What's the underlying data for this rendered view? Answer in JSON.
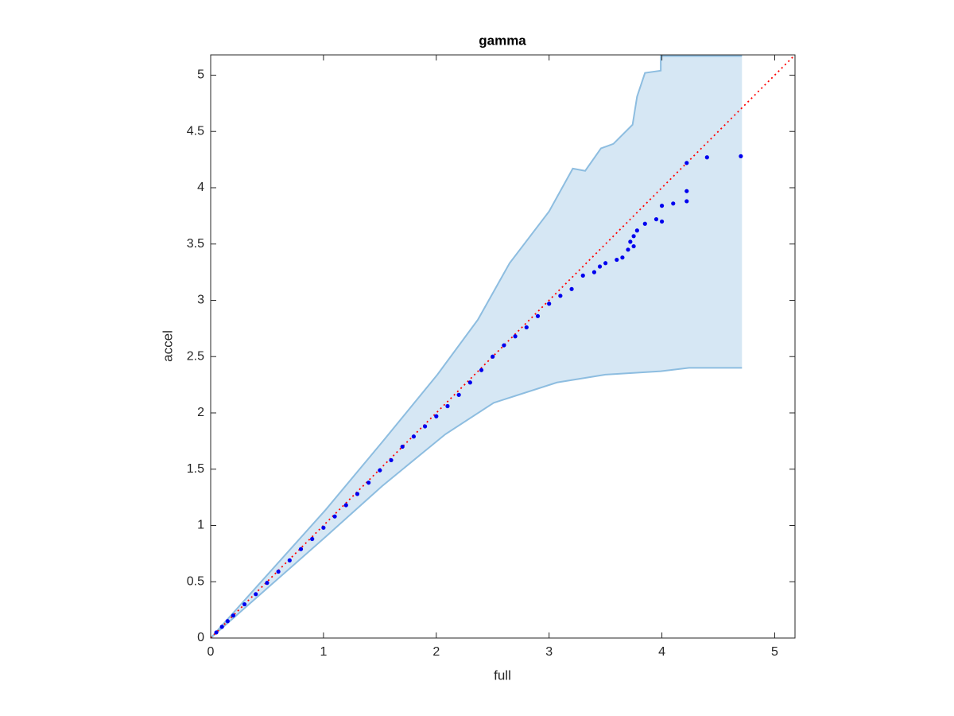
{
  "chart_data": {
    "type": "scatter",
    "title": "gamma",
    "xlabel": "full",
    "ylabel": "accel",
    "x": [
      0.05,
      0.1,
      0.15,
      0.2,
      0.3,
      0.4,
      0.5,
      0.6,
      0.7,
      0.8,
      0.9,
      1.0,
      1.1,
      1.2,
      1.3,
      1.4,
      1.5,
      1.6,
      1.7,
      1.8,
      1.9,
      2.0,
      2.1,
      2.2,
      2.3,
      2.4,
      2.5,
      2.6,
      2.7,
      2.8,
      2.9,
      3.0,
      3.1,
      3.2,
      3.3,
      3.4,
      3.45,
      3.5,
      3.6,
      3.65,
      3.7,
      3.72,
      3.75,
      3.75,
      3.78,
      3.85,
      3.95,
      4.0,
      4.0,
      4.1,
      4.22,
      4.22,
      4.22,
      4.4,
      4.7
    ],
    "values": [
      0.05,
      0.1,
      0.15,
      0.2,
      0.3,
      0.39,
      0.49,
      0.59,
      0.69,
      0.79,
      0.88,
      0.98,
      1.08,
      1.18,
      1.28,
      1.38,
      1.49,
      1.58,
      1.7,
      1.79,
      1.88,
      1.97,
      2.06,
      2.16,
      2.27,
      2.38,
      2.5,
      2.6,
      2.68,
      2.76,
      2.86,
      2.97,
      3.04,
      3.1,
      3.22,
      3.25,
      3.3,
      3.33,
      3.36,
      3.38,
      3.45,
      3.52,
      3.48,
      3.57,
      3.62,
      3.68,
      3.72,
      3.7,
      3.84,
      3.86,
      3.88,
      3.97,
      4.22,
      4.27,
      4.28
    ],
    "color": "#0000ee",
    "band": {
      "color": "#d6e7f4",
      "edge_color": "#8dbde0",
      "upper": {
        "x": [
          0,
          1.02,
          1.52,
          2.01,
          2.37,
          2.65,
          3.0,
          3.21,
          3.32,
          3.46,
          3.57,
          3.74,
          3.78,
          3.85,
          3.99,
          3.99,
          4.71
        ],
        "values": [
          0,
          1.14,
          1.74,
          2.34,
          2.83,
          3.33,
          3.79,
          4.17,
          4.15,
          4.35,
          4.39,
          4.56,
          4.81,
          5.02,
          5.04,
          5.17,
          5.17
        ]
      },
      "lower": {
        "x": [
          0,
          1.02,
          1.52,
          2.08,
          2.51,
          3.07,
          3.5,
          3.99,
          4.24,
          4.71
        ],
        "values": [
          0,
          0.9,
          1.35,
          1.81,
          2.09,
          2.27,
          2.34,
          2.37,
          2.4,
          2.4
        ]
      }
    },
    "reference_line": {
      "color": "#ff0000",
      "x": [
        0,
        5.18
      ],
      "values": [
        0,
        5.18
      ]
    },
    "xlim": [
      0,
      5.18
    ],
    "ylim": [
      0,
      5.18
    ],
    "xticks": [
      0,
      1,
      2,
      3,
      4,
      5
    ],
    "yticks": [
      0,
      0.5,
      1,
      1.5,
      2,
      2.5,
      3,
      3.5,
      4,
      4.5,
      5
    ]
  }
}
